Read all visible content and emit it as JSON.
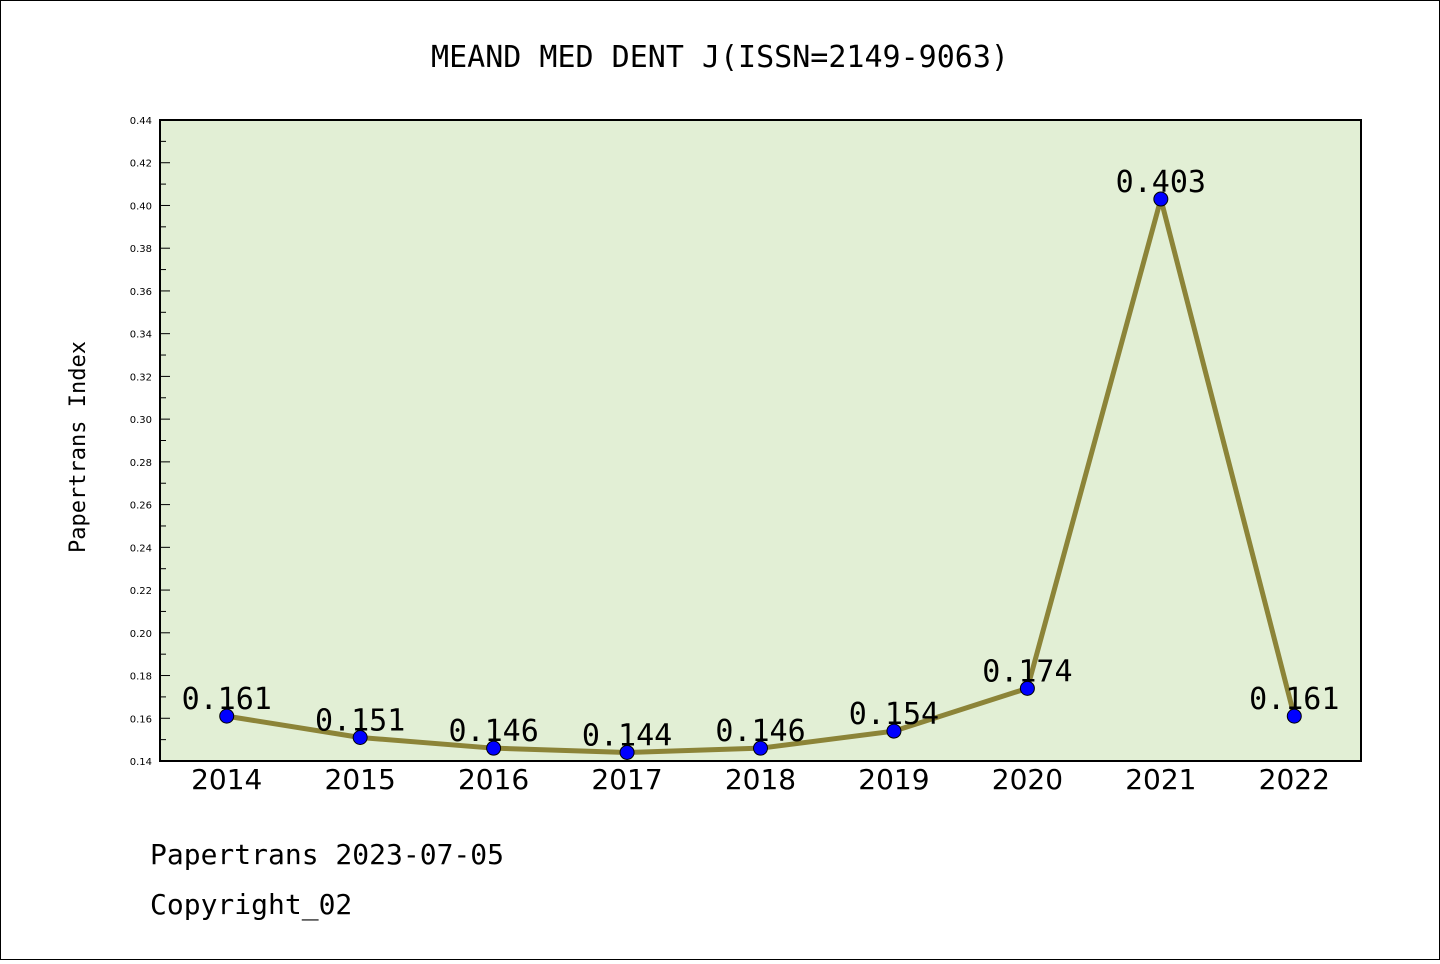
{
  "chart_data": {
    "type": "line",
    "title": "MEAND MED DENT J(ISSN=2149-9063)",
    "xlabel": "",
    "ylabel": "Papertrans Index",
    "categories": [
      "2014",
      "2015",
      "2016",
      "2017",
      "2018",
      "2019",
      "2020",
      "2021",
      "2022"
    ],
    "values": [
      0.161,
      0.151,
      0.146,
      0.144,
      0.146,
      0.154,
      0.174,
      0.403,
      0.161
    ],
    "data_labels": [
      "0.161",
      "0.151",
      "0.146",
      "0.144",
      "0.146",
      "0.154",
      "0.174",
      "0.403",
      "0.161"
    ],
    "ylim": [
      0.14,
      0.44
    ],
    "yticks": [
      "0.14",
      "0.16",
      "0.18",
      "0.20",
      "0.22",
      "0.24",
      "0.26",
      "0.28",
      "0.30",
      "0.32",
      "0.34",
      "0.36",
      "0.38",
      "0.40",
      "0.42",
      "0.44"
    ],
    "grid": false,
    "legend": "none",
    "colors": {
      "plot_background": "#e2efd5",
      "line": "#8c8438",
      "marker": "#0000ff"
    }
  },
  "footer": {
    "line1": "Papertrans 2023-07-05",
    "line2": "Copyright_02"
  }
}
